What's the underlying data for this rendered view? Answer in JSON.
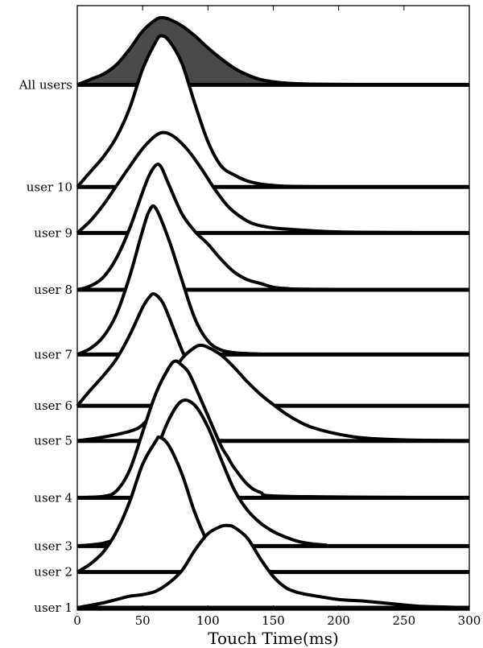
{
  "chart_data": {
    "type": "area",
    "title": "",
    "xlabel": "Touch Time(ms)",
    "ylabel": "",
    "xlim": [
      0,
      300
    ],
    "xticks": [
      "0",
      "50",
      "100",
      "150",
      "200",
      "250",
      "300"
    ],
    "grid": false,
    "legend": "none",
    "colors": {
      "all_users_fill": "#4a4a4a",
      "line": "#000000",
      "user_fill": "#ffffff"
    },
    "series": [
      {
        "name": "All users",
        "baseline": 0.869,
        "peak": 0.98,
        "x": [
          0,
          10,
          20,
          30,
          40,
          50,
          60,
          65,
          70,
          80,
          90,
          100,
          110,
          120,
          130,
          140,
          150,
          160,
          175,
          200,
          250,
          300
        ],
        "y": [
          0.0,
          0.08,
          0.16,
          0.3,
          0.53,
          0.8,
          0.97,
          1.0,
          0.98,
          0.88,
          0.73,
          0.55,
          0.39,
          0.25,
          0.15,
          0.08,
          0.045,
          0.025,
          0.012,
          0.006,
          0.002,
          0.0
        ]
      },
      {
        "name": "user 10",
        "baseline": 0.7,
        "peak": 0.95,
        "x": [
          0,
          10,
          20,
          30,
          40,
          50,
          60,
          64,
          70,
          80,
          90,
          100,
          110,
          120,
          130,
          140,
          150,
          160,
          180,
          200,
          250,
          300
        ],
        "y": [
          0.0,
          0.1,
          0.2,
          0.33,
          0.52,
          0.78,
          0.96,
          1.0,
          0.97,
          0.82,
          0.55,
          0.3,
          0.14,
          0.08,
          0.04,
          0.02,
          0.01,
          0.005,
          0.002,
          0.0,
          0.0,
          0.0
        ]
      },
      {
        "name": "user 9",
        "baseline": 0.624,
        "peak": 0.79,
        "x": [
          0,
          10,
          20,
          30,
          40,
          50,
          60,
          67,
          75,
          85,
          95,
          105,
          115,
          125,
          135,
          150,
          170,
          200,
          250,
          300
        ],
        "y": [
          0.0,
          0.12,
          0.28,
          0.47,
          0.66,
          0.84,
          0.97,
          1.0,
          0.95,
          0.82,
          0.64,
          0.44,
          0.27,
          0.16,
          0.09,
          0.05,
          0.03,
          0.01,
          0.004,
          0.0
        ]
      },
      {
        "name": "user 8",
        "baseline": 0.53,
        "peak": 0.74,
        "x": [
          0,
          10,
          20,
          30,
          40,
          50,
          55,
          60,
          64,
          70,
          80,
          90,
          100,
          110,
          120,
          130,
          140,
          150,
          160,
          180,
          300
        ],
        "y": [
          0.0,
          0.03,
          0.1,
          0.25,
          0.48,
          0.77,
          0.9,
          0.98,
          0.97,
          0.83,
          0.6,
          0.46,
          0.36,
          0.24,
          0.14,
          0.08,
          0.05,
          0.02,
          0.01,
          0.004,
          0.0
        ]
      },
      {
        "name": "user 7",
        "baseline": 0.423,
        "peak": 0.67,
        "x": [
          0,
          10,
          20,
          30,
          40,
          50,
          55,
          60,
          70,
          80,
          90,
          100,
          110,
          120,
          130,
          140,
          150,
          300
        ],
        "y": [
          0.0,
          0.04,
          0.12,
          0.27,
          0.52,
          0.83,
          0.96,
          0.98,
          0.77,
          0.5,
          0.24,
          0.09,
          0.03,
          0.012,
          0.006,
          0.003,
          0.0,
          0.0
        ]
      },
      {
        "name": "user 6",
        "baseline": 0.338,
        "peak": 0.523,
        "x": [
          0,
          10,
          20,
          30,
          40,
          50,
          55,
          59,
          65,
          70,
          80,
          90,
          100,
          110,
          120,
          130,
          140,
          150,
          300
        ],
        "y": [
          0.0,
          0.14,
          0.27,
          0.42,
          0.63,
          0.88,
          0.97,
          1.0,
          0.93,
          0.8,
          0.5,
          0.25,
          0.1,
          0.04,
          0.02,
          0.01,
          0.004,
          0.0,
          0.0
        ]
      },
      {
        "name": "user 5",
        "baseline": 0.28,
        "peak": 0.438,
        "x": [
          0,
          20,
          40,
          50,
          60,
          70,
          80,
          90,
          95,
          100,
          110,
          120,
          130,
          140,
          150,
          160,
          170,
          180,
          200,
          220,
          250,
          300
        ],
        "y": [
          0.0,
          0.04,
          0.1,
          0.17,
          0.35,
          0.63,
          0.86,
          0.98,
          1.0,
          0.98,
          0.9,
          0.77,
          0.62,
          0.49,
          0.38,
          0.28,
          0.2,
          0.14,
          0.07,
          0.03,
          0.01,
          0.0
        ]
      },
      {
        "name": "user 4",
        "baseline": 0.186,
        "peak": 0.412,
        "x": [
          0,
          20,
          30,
          40,
          50,
          60,
          70,
          75,
          80,
          85,
          90,
          100,
          110,
          115,
          120,
          130,
          140,
          160,
          300
        ],
        "y": [
          0.0,
          0.01,
          0.05,
          0.2,
          0.48,
          0.76,
          0.95,
          1.0,
          0.97,
          0.92,
          0.82,
          0.6,
          0.38,
          0.3,
          0.22,
          0.1,
          0.04,
          0.01,
          0.0
        ]
      },
      {
        "name": "user 3",
        "baseline": 0.106,
        "peak": 0.346,
        "x": [
          0,
          20,
          30,
          40,
          50,
          60,
          70,
          80,
          90,
          100,
          110,
          120,
          130,
          140,
          150,
          160,
          170,
          180,
          190,
          200,
          300
        ],
        "y": [
          0.0,
          0.02,
          0.06,
          0.15,
          0.36,
          0.64,
          0.87,
          1.0,
          0.97,
          0.82,
          0.6,
          0.39,
          0.25,
          0.16,
          0.1,
          0.06,
          0.03,
          0.015,
          0.007,
          0.0,
          0.0
        ]
      },
      {
        "name": "user 2",
        "baseline": 0.063,
        "peak": 0.286,
        "x": [
          0,
          10,
          20,
          30,
          40,
          50,
          60,
          63,
          70,
          80,
          90,
          100,
          110,
          120,
          140,
          160,
          200,
          300
        ],
        "y": [
          0.0,
          0.06,
          0.15,
          0.3,
          0.52,
          0.8,
          0.97,
          1.0,
          0.94,
          0.73,
          0.44,
          0.22,
          0.1,
          0.04,
          0.01,
          0.0,
          0.0,
          0.0
        ]
      },
      {
        "name": "user 1",
        "baseline": 0.004,
        "peak": 0.14,
        "x": [
          0,
          10,
          20,
          30,
          40,
          50,
          60,
          70,
          80,
          90,
          100,
          110,
          115,
          120,
          130,
          140,
          150,
          160,
          170,
          180,
          200,
          220,
          240,
          260,
          280,
          300
        ],
        "y": [
          0.0,
          0.03,
          0.06,
          0.1,
          0.14,
          0.16,
          0.2,
          0.3,
          0.45,
          0.7,
          0.9,
          0.99,
          1.0,
          0.98,
          0.85,
          0.6,
          0.38,
          0.24,
          0.18,
          0.15,
          0.1,
          0.08,
          0.05,
          0.02,
          0.01,
          0.0
        ]
      }
    ]
  }
}
